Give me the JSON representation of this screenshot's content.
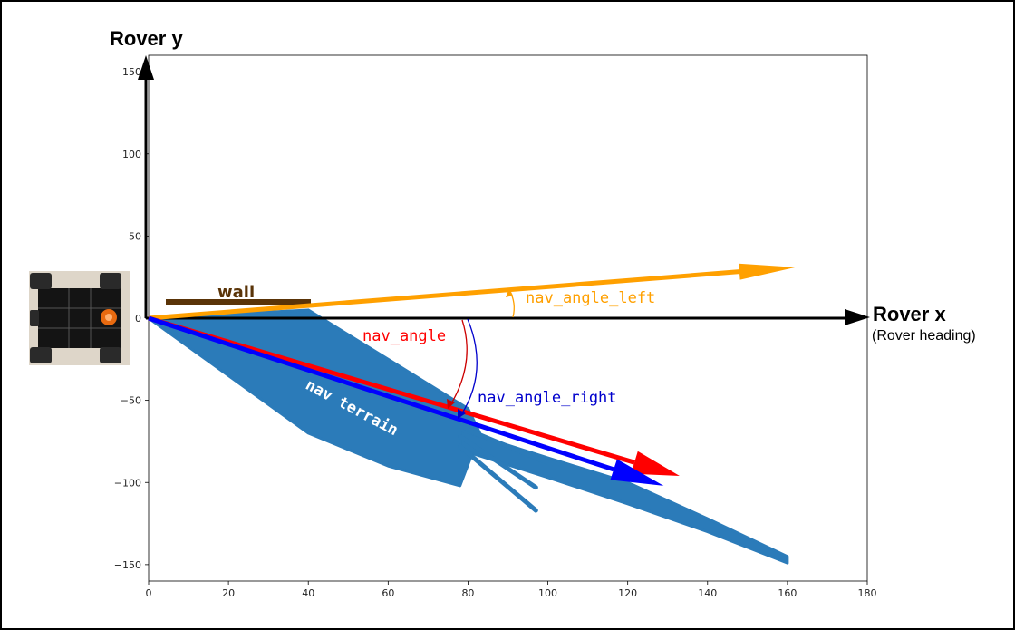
{
  "labels": {
    "rover_y": "Rover y",
    "rover_x": "Rover x",
    "rover_heading": "(Rover heading)",
    "wall": "wall",
    "nav_angle": "nav_angle",
    "nav_angle_left": "nav_angle_left",
    "nav_angle_right": "nav_angle_right",
    "nav_terrain": "nav terrain"
  },
  "colors": {
    "terrain": "#2b7bb9",
    "nav_angle": "#ff0000",
    "nav_angle_left": "#ffa000",
    "nav_angle_right": "#0000ff",
    "wall": "#5a3408",
    "axis": "#000000"
  },
  "chart_data": {
    "type": "scatter",
    "xlim": [
      0,
      180
    ],
    "ylim": [
      -160,
      160
    ],
    "x_ticks": [
      0,
      20,
      40,
      60,
      80,
      100,
      120,
      140,
      160,
      180
    ],
    "y_ticks": [
      150,
      100,
      50,
      0,
      -50,
      -100,
      -150
    ],
    "x_tick_labels": [
      "0",
      "20",
      "40",
      "60",
      "80",
      "100",
      "120",
      "140",
      "160",
      "180"
    ],
    "y_tick_labels": [
      "150",
      "100",
      "50",
      "0",
      "−50",
      "−100",
      "−150"
    ],
    "terrain_polygons": [
      [
        [
          0,
          0
        ],
        [
          40,
          5
        ],
        [
          60,
          -25
        ],
        [
          80,
          -55
        ],
        [
          83,
          -70
        ],
        [
          78,
          -102
        ],
        [
          60,
          -90
        ],
        [
          40,
          -70
        ],
        [
          20,
          -35
        ],
        [
          0,
          0
        ]
      ],
      [
        [
          78,
          -68
        ],
        [
          100,
          -85
        ],
        [
          120,
          -100
        ],
        [
          140,
          -122
        ],
        [
          160,
          -145
        ],
        [
          160,
          -149
        ],
        [
          140,
          -130
        ],
        [
          120,
          -113
        ],
        [
          100,
          -97
        ],
        [
          78,
          -80
        ]
      ]
    ],
    "terrain_strips": [
      {
        "start": [
          78,
          -72
        ],
        "end": [
          97,
          -103
        ]
      },
      {
        "start": [
          78,
          -78
        ],
        "end": [
          97,
          -117
        ]
      },
      {
        "start": [
          80,
          -68
        ],
        "end": [
          100,
          -88
        ]
      }
    ],
    "vectors": {
      "nav_angle_left": {
        "end": [
          162,
          31
        ]
      },
      "nav_angle": {
        "end": [
          133,
          -96
        ]
      },
      "nav_angle_right": {
        "end": [
          129,
          -102
        ]
      }
    },
    "wall": {
      "x0": 5,
      "x1": 41,
      "y": 10
    }
  }
}
